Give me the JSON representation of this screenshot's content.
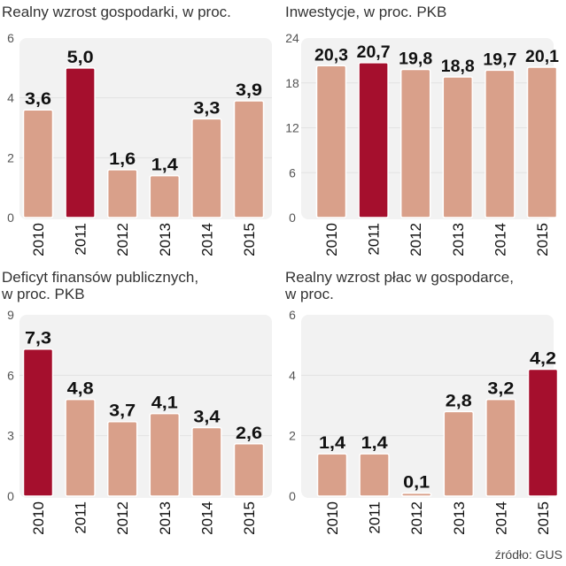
{
  "colors": {
    "bar": "#d9a08a",
    "highlight": "#a50f2d",
    "panel": "#f2f2f2",
    "grid": "#e2e2e2"
  },
  "chart_data": [
    {
      "type": "bar",
      "title": "Realny wzrost gospodarki, w proc.",
      "categories": [
        "2010",
        "2011",
        "2012",
        "2013",
        "2014",
        "2015"
      ],
      "values": [
        3.6,
        5.0,
        1.6,
        1.4,
        3.3,
        3.9
      ],
      "labels": [
        "3,6",
        "5,0",
        "1,6",
        "1,4",
        "3,3",
        "3,9"
      ],
      "highlight": "2011",
      "ylim": [
        0,
        6
      ],
      "yticks": [
        0,
        2,
        4,
        6
      ],
      "grid": true
    },
    {
      "type": "bar",
      "title": "Inwestycje, w proc. PKB",
      "categories": [
        "2010",
        "2011",
        "2012",
        "2013",
        "2014",
        "2015"
      ],
      "values": [
        20.3,
        20.7,
        19.8,
        18.8,
        19.7,
        20.1
      ],
      "labels": [
        "20,3",
        "20,7",
        "19,8",
        "18,8",
        "19,7",
        "20,1"
      ],
      "highlight": "2011",
      "ylim": [
        0,
        24
      ],
      "yticks": [
        0,
        6,
        12,
        18,
        24
      ],
      "grid": true
    },
    {
      "type": "bar",
      "title": "Deficyt finansów publicznych,\nw proc. PKB",
      "categories": [
        "2010",
        "2011",
        "2012",
        "2013",
        "2014",
        "2015"
      ],
      "values": [
        7.3,
        4.8,
        3.7,
        4.1,
        3.4,
        2.6
      ],
      "labels": [
        "7,3",
        "4,8",
        "3,7",
        "4,1",
        "3,4",
        "2,6"
      ],
      "highlight": "2010",
      "ylim": [
        0,
        9
      ],
      "yticks": [
        0,
        3,
        6,
        9
      ],
      "grid": true
    },
    {
      "type": "bar",
      "title": "Realny wzrost płac w gospodarce,\nw proc.",
      "categories": [
        "2010",
        "2011",
        "2012",
        "2013",
        "2014",
        "2015"
      ],
      "values": [
        1.4,
        1.4,
        0.1,
        2.8,
        3.2,
        4.2
      ],
      "labels": [
        "1,4",
        "1,4",
        "0,1",
        "2,8",
        "3,2",
        "4,2"
      ],
      "highlight": "2015",
      "ylim": [
        0,
        6
      ],
      "yticks": [
        0,
        2,
        4,
        6
      ],
      "grid": true
    }
  ],
  "source": "źródło: GUS"
}
